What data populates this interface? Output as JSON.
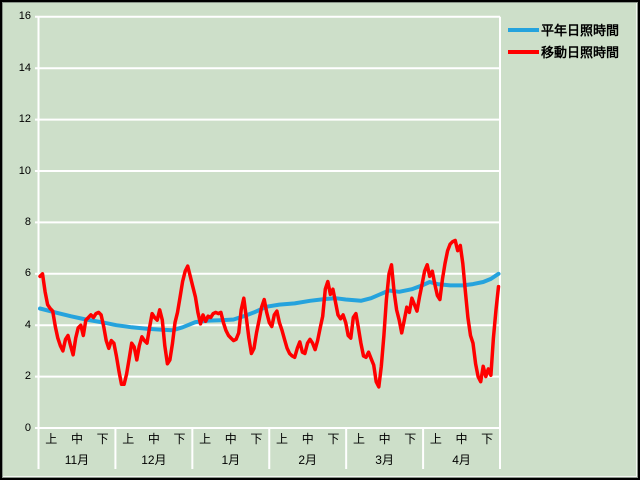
{
  "legend": {
    "items": [
      {
        "label": "平年日照時間",
        "color": "#25a3dd"
      },
      {
        "label": "移動日照時間",
        "color": "#ff0000"
      }
    ]
  },
  "chart_data": {
    "type": "line",
    "title": "",
    "xlabel": "",
    "ylabel": "",
    "ylim": [
      0,
      16
    ],
    "yticks": [
      0,
      2,
      4,
      6,
      8,
      10,
      12,
      14,
      16
    ],
    "grid": {
      "horizontal": true,
      "color": "#ffffff",
      "background": "#cddfc9"
    },
    "legend_position": "top-right",
    "x_axis": {
      "months": [
        "11月",
        "12月",
        "1月",
        "2月",
        "3月",
        "4月"
      ],
      "periods": [
        "上",
        "中",
        "下"
      ],
      "total_days": 180
    },
    "series": [
      {
        "name": "平年日照時間",
        "color": "#25a3dd",
        "width": 4,
        "kind": "anchors",
        "points": [
          [
            0,
            4.65
          ],
          [
            6,
            4.5
          ],
          [
            12,
            4.35
          ],
          [
            18,
            4.22
          ],
          [
            24,
            4.12
          ],
          [
            30,
            4.0
          ],
          [
            36,
            3.92
          ],
          [
            42,
            3.86
          ],
          [
            48,
            3.82
          ],
          [
            52,
            3.8
          ],
          [
            56,
            3.92
          ],
          [
            61,
            4.12
          ],
          [
            66,
            4.18
          ],
          [
            72,
            4.2
          ],
          [
            76,
            4.22
          ],
          [
            80,
            4.35
          ],
          [
            84,
            4.5
          ],
          [
            89,
            4.72
          ],
          [
            94,
            4.8
          ],
          [
            100,
            4.85
          ],
          [
            106,
            4.95
          ],
          [
            112,
            5.02
          ],
          [
            116,
            5.05
          ],
          [
            120,
            5.0
          ],
          [
            126,
            4.95
          ],
          [
            130,
            5.05
          ],
          [
            134,
            5.22
          ],
          [
            137,
            5.35
          ],
          [
            141,
            5.3
          ],
          [
            146,
            5.4
          ],
          [
            150,
            5.55
          ],
          [
            153,
            5.68
          ],
          [
            156,
            5.6
          ],
          [
            161,
            5.55
          ],
          [
            166,
            5.55
          ],
          [
            170,
            5.6
          ],
          [
            174,
            5.68
          ],
          [
            177,
            5.8
          ],
          [
            180,
            6.0
          ]
        ]
      },
      {
        "name": "移動日照時間",
        "color": "#ff0000",
        "width": 3.5,
        "kind": "daily",
        "start_day": 0,
        "step_days": 1,
        "values": [
          5.9,
          6.0,
          5.3,
          4.8,
          4.65,
          4.55,
          3.95,
          3.5,
          3.2,
          3.0,
          3.45,
          3.6,
          3.2,
          2.85,
          3.5,
          3.9,
          4.0,
          3.6,
          4.2,
          4.3,
          4.4,
          4.3,
          4.45,
          4.5,
          4.4,
          3.95,
          3.4,
          3.1,
          3.4,
          3.3,
          2.8,
          2.2,
          1.7,
          1.7,
          2.1,
          2.7,
          3.3,
          3.15,
          2.65,
          3.2,
          3.55,
          3.4,
          3.3,
          3.9,
          4.45,
          4.3,
          4.2,
          4.6,
          4.2,
          3.2,
          2.5,
          2.65,
          3.3,
          4.1,
          4.5,
          5.1,
          5.7,
          6.1,
          6.3,
          5.9,
          5.5,
          5.1,
          4.5,
          4.05,
          4.4,
          4.15,
          4.35,
          4.3,
          4.45,
          4.5,
          4.45,
          4.5,
          4.1,
          3.8,
          3.6,
          3.5,
          3.4,
          3.45,
          3.7,
          4.6,
          5.05,
          4.3,
          3.5,
          2.9,
          3.1,
          3.7,
          4.2,
          4.7,
          5.0,
          4.5,
          4.1,
          3.95,
          4.4,
          4.55,
          4.1,
          3.8,
          3.45,
          3.1,
          2.9,
          2.8,
          2.75,
          3.1,
          3.35,
          2.95,
          2.9,
          3.3,
          3.45,
          3.3,
          3.05,
          3.4,
          3.9,
          4.35,
          5.4,
          5.7,
          5.2,
          5.4,
          4.9,
          4.4,
          4.25,
          4.4,
          4.1,
          3.6,
          3.5,
          4.3,
          4.45,
          3.9,
          3.3,
          2.8,
          2.75,
          2.95,
          2.7,
          2.45,
          1.8,
          1.6,
          2.4,
          3.6,
          5.0,
          6.0,
          6.35,
          5.3,
          4.6,
          4.2,
          3.7,
          4.2,
          4.7,
          4.5,
          5.05,
          4.8,
          4.55,
          5.1,
          5.6,
          6.1,
          6.35,
          5.9,
          6.1,
          5.6,
          5.15,
          5.0,
          5.8,
          6.4,
          6.9,
          7.15,
          7.25,
          7.3,
          6.9,
          7.1,
          6.4,
          5.3,
          4.3,
          3.6,
          3.3,
          2.5,
          2.0,
          1.8,
          2.4,
          2.0,
          2.3,
          2.05,
          3.5,
          4.6,
          5.5
        ]
      }
    ]
  }
}
